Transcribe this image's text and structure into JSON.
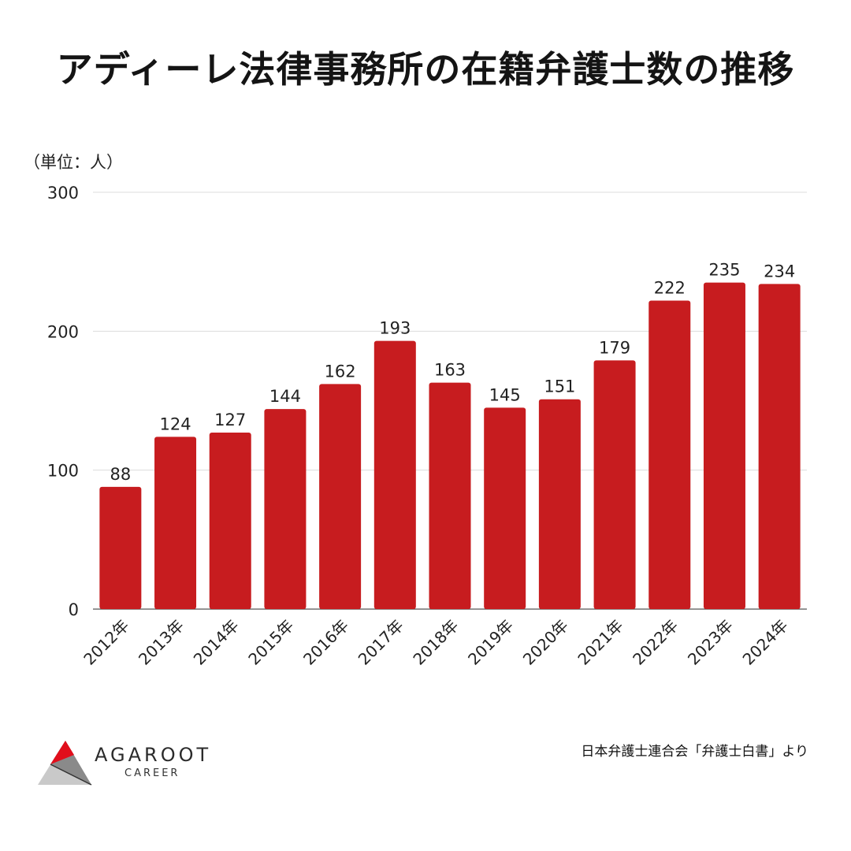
{
  "title": "アディーレ法律事務所の在籍弁護士数の推移",
  "unit_label": "（単位：人）",
  "source": "日本弁護士連合会「弁護士白書」より",
  "logo": {
    "name": "AGAROOT",
    "sub": "CAREER"
  },
  "colors": {
    "bar": "#c71c1f",
    "grid": "#dcdcdc",
    "axis": "#555555",
    "text": "#111111"
  },
  "chart_data": {
    "type": "bar",
    "categories": [
      "2012年",
      "2013年",
      "2014年",
      "2015年",
      "2016年",
      "2017年",
      "2018年",
      "2019年",
      "2020年",
      "2021年",
      "2022年",
      "2023年",
      "2024年"
    ],
    "values": [
      88,
      124,
      127,
      144,
      162,
      193,
      163,
      145,
      151,
      179,
      222,
      235,
      234
    ],
    "ylim": [
      0,
      300
    ],
    "yticks": [
      0,
      100,
      200,
      300
    ],
    "grid": true,
    "data_labels": true
  }
}
